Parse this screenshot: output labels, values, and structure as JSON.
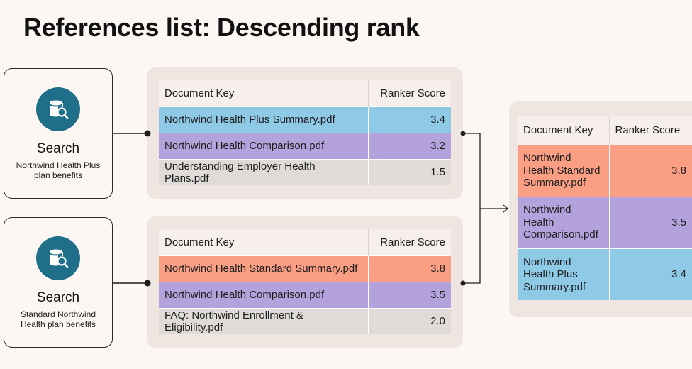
{
  "title": "References list: Descending rank",
  "searches": [
    {
      "label": "Search",
      "query": "Northwind Health Plus plan benefits",
      "icon": "database-search-icon"
    },
    {
      "label": "Search",
      "query": "Standard Northwind Health plan benefits",
      "icon": "database-search-icon"
    }
  ],
  "tables": [
    {
      "headers": {
        "key": "Document Key",
        "score": "Ranker Score"
      },
      "rows": [
        {
          "key": "Northwind Health Plus Summary.pdf",
          "score": "3.4",
          "color": "#8ec9e6"
        },
        {
          "key": "Northwind Health Comparison.pdf",
          "score": "3.2",
          "color": "#b4a2dc"
        },
        {
          "key": "Understanding Employer Health Plans.pdf",
          "score": "1.5",
          "color": "#dedbd8"
        }
      ]
    },
    {
      "headers": {
        "key": "Document Key",
        "score": "Ranker Score"
      },
      "rows": [
        {
          "key": "Northwind Health Standard Summary.pdf",
          "score": "3.8",
          "color": "#fb9f84"
        },
        {
          "key": "Northwind Health Comparison.pdf",
          "score": "3.5",
          "color": "#b4a2dc"
        },
        {
          "key": "FAQ: Northwind Enrollment & Eligibility.pdf",
          "score": "2.0",
          "color": "#dedbd8"
        }
      ]
    }
  ],
  "merged": {
    "headers": {
      "key": "Document Key",
      "score": "Ranker Score"
    },
    "rows": [
      {
        "key": "Northwind Health Standard Summary.pdf",
        "lines": [
          "Northwind",
          "Health Standard",
          "Summary.pdf"
        ],
        "score": "3.8",
        "color": "#fb9f84"
      },
      {
        "key": "Northwind Health Comparison.pdf",
        "lines": [
          "Northwind",
          "Health",
          "Comparison.pdf"
        ],
        "score": "3.5",
        "color": "#b4a2dc"
      },
      {
        "key": "Northwind Health Plus Summary.pdf",
        "lines": [
          "Northwind",
          "Health Plus",
          "Summary.pdf"
        ],
        "score": "3.4",
        "color": "#8ec9e6"
      }
    ]
  },
  "colors": {
    "icon_bg": "#1f6f8b",
    "connector": "#1e1e1e",
    "panel": "#efe6e1"
  }
}
